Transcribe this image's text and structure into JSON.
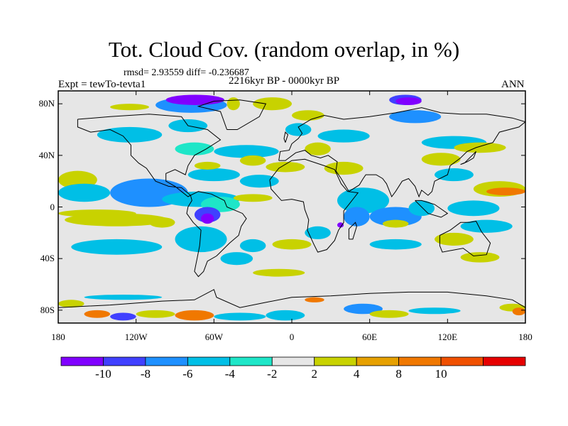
{
  "title": "Tot. Cloud Cov. (random overlap, in %)",
  "stats": "rmsd= 2.93559 diff= -0.236687",
  "experiment": "Expt = tewTo-tevta1",
  "period": "2216kyr BP - 0000kyr BP",
  "season": "ANN",
  "map": {
    "projection": "cylindrical-equidistant",
    "lon_range": [
      -180,
      180
    ],
    "lat_range": [
      -90,
      90
    ],
    "lat_ticks": [
      {
        "value": 80,
        "label": "80N"
      },
      {
        "value": 40,
        "label": "40N"
      },
      {
        "value": 0,
        "label": "0"
      },
      {
        "value": -40,
        "label": "40S"
      },
      {
        "value": -80,
        "label": "80S"
      }
    ],
    "lon_ticks": [
      {
        "value": -180,
        "label": "180"
      },
      {
        "value": -120,
        "label": "120W"
      },
      {
        "value": -60,
        "label": "60W"
      },
      {
        "value": 0,
        "label": "0"
      },
      {
        "value": 60,
        "label": "60E"
      },
      {
        "value": 120,
        "label": "120E"
      },
      {
        "value": 180,
        "label": "180"
      }
    ],
    "background_color": "#e6e6e6",
    "regions": [
      {
        "level": 6,
        "lon": -180,
        "lat": 28,
        "w": 30,
        "h": 14
      },
      {
        "level": 3,
        "lon": -180,
        "lat": 18,
        "w": 40,
        "h": 14
      },
      {
        "level": 6,
        "lon": -180,
        "lat": -2,
        "w": 60,
        "h": 6
      },
      {
        "level": 2,
        "lon": -140,
        "lat": 22,
        "w": 60,
        "h": 22
      },
      {
        "level": 6,
        "lon": -175,
        "lat": -5,
        "w": 80,
        "h": 10
      },
      {
        "level": 3,
        "lon": -170,
        "lat": -25,
        "w": 70,
        "h": 12
      },
      {
        "level": 6,
        "lon": -110,
        "lat": -8,
        "w": 20,
        "h": 8
      },
      {
        "level": 3,
        "lon": -150,
        "lat": 62,
        "w": 50,
        "h": 12
      },
      {
        "level": 6,
        "lon": -140,
        "lat": 80,
        "w": 30,
        "h": 5
      },
      {
        "level": 2,
        "lon": -105,
        "lat": 85,
        "w": 55,
        "h": 12
      },
      {
        "level": 0,
        "lon": -97,
        "lat": 87,
        "w": 45,
        "h": 8
      },
      {
        "level": 6,
        "lon": -50,
        "lat": 85,
        "w": 10,
        "h": 10
      },
      {
        "level": 3,
        "lon": -95,
        "lat": 68,
        "w": 30,
        "h": 10
      },
      {
        "level": 4,
        "lon": -90,
        "lat": 50,
        "w": 30,
        "h": 10
      },
      {
        "level": 3,
        "lon": -80,
        "lat": 30,
        "w": 40,
        "h": 10
      },
      {
        "level": 6,
        "lon": -75,
        "lat": 35,
        "w": 20,
        "h": 6
      },
      {
        "level": 3,
        "lon": -100,
        "lat": 12,
        "w": 60,
        "h": 12
      },
      {
        "level": 4,
        "lon": -70,
        "lat": 8,
        "w": 30,
        "h": 12
      },
      {
        "level": 1,
        "lon": -75,
        "lat": 0,
        "w": 20,
        "h": 12
      },
      {
        "level": 0,
        "lon": -70,
        "lat": -5,
        "w": 10,
        "h": 8
      },
      {
        "level": 3,
        "lon": -90,
        "lat": -15,
        "w": 40,
        "h": 20
      },
      {
        "level": 3,
        "lon": -55,
        "lat": -35,
        "w": 25,
        "h": 10
      },
      {
        "level": 3,
        "lon": -40,
        "lat": -25,
        "w": 20,
        "h": 10
      },
      {
        "level": 6,
        "lon": -30,
        "lat": 85,
        "w": 30,
        "h": 10
      },
      {
        "level": 3,
        "lon": -60,
        "lat": 48,
        "w": 50,
        "h": 10
      },
      {
        "level": 3,
        "lon": -40,
        "lat": 25,
        "w": 30,
        "h": 10
      },
      {
        "level": 6,
        "lon": -40,
        "lat": 40,
        "w": 20,
        "h": 8
      },
      {
        "level": 6,
        "lon": -20,
        "lat": 35,
        "w": 30,
        "h": 8
      },
      {
        "level": 6,
        "lon": -45,
        "lat": 10,
        "w": 30,
        "h": 6
      },
      {
        "level": 6,
        "lon": -15,
        "lat": -25,
        "w": 30,
        "h": 8
      },
      {
        "level": 6,
        "lon": -30,
        "lat": -48,
        "w": 40,
        "h": 6
      },
      {
        "level": 3,
        "lon": -5,
        "lat": 65,
        "w": 20,
        "h": 10
      },
      {
        "level": 6,
        "lon": 0,
        "lat": 75,
        "w": 25,
        "h": 8
      },
      {
        "level": 3,
        "lon": 20,
        "lat": 60,
        "w": 40,
        "h": 10
      },
      {
        "level": 6,
        "lon": 10,
        "lat": 50,
        "w": 20,
        "h": 10
      },
      {
        "level": 6,
        "lon": 25,
        "lat": 35,
        "w": 30,
        "h": 10
      },
      {
        "level": 3,
        "lon": 35,
        "lat": 15,
        "w": 40,
        "h": 20
      },
      {
        "level": 2,
        "lon": 40,
        "lat": 0,
        "w": 20,
        "h": 15
      },
      {
        "level": 0,
        "lon": 35,
        "lat": -12,
        "w": 5,
        "h": 4
      },
      {
        "level": 2,
        "lon": 60,
        "lat": 0,
        "w": 40,
        "h": 15
      },
      {
        "level": 3,
        "lon": 90,
        "lat": 5,
        "w": 20,
        "h": 12
      },
      {
        "level": 3,
        "lon": 10,
        "lat": -15,
        "w": 20,
        "h": 10
      },
      {
        "level": 1,
        "lon": 75,
        "lat": 87,
        "w": 25,
        "h": 8
      },
      {
        "level": 0,
        "lon": 80,
        "lat": 85,
        "w": 20,
        "h": 6
      },
      {
        "level": 2,
        "lon": 75,
        "lat": 75,
        "w": 40,
        "h": 10
      },
      {
        "level": 3,
        "lon": 100,
        "lat": 55,
        "w": 50,
        "h": 10
      },
      {
        "level": 6,
        "lon": 100,
        "lat": 42,
        "w": 30,
        "h": 10
      },
      {
        "level": 6,
        "lon": 125,
        "lat": 50,
        "w": 40,
        "h": 8
      },
      {
        "level": 3,
        "lon": 110,
        "lat": 30,
        "w": 30,
        "h": 10
      },
      {
        "level": 6,
        "lon": 140,
        "lat": 20,
        "w": 40,
        "h": 12
      },
      {
        "level": 8,
        "lon": 150,
        "lat": 15,
        "w": 30,
        "h": 6
      },
      {
        "level": 3,
        "lon": 120,
        "lat": 5,
        "w": 40,
        "h": 12
      },
      {
        "level": 6,
        "lon": 110,
        "lat": -20,
        "w": 30,
        "h": 10
      },
      {
        "level": 3,
        "lon": 130,
        "lat": -10,
        "w": 40,
        "h": 10
      },
      {
        "level": 6,
        "lon": 130,
        "lat": -35,
        "w": 30,
        "h": 8
      },
      {
        "level": 3,
        "lon": 60,
        "lat": -25,
        "w": 40,
        "h": 8
      },
      {
        "level": 6,
        "lon": 70,
        "lat": -10,
        "w": 20,
        "h": 6
      },
      {
        "level": 6,
        "lon": -180,
        "lat": -72,
        "w": 20,
        "h": 6
      },
      {
        "level": 3,
        "lon": -160,
        "lat": -68,
        "w": 60,
        "h": 4
      },
      {
        "level": 8,
        "lon": -160,
        "lat": -80,
        "w": 20,
        "h": 6
      },
      {
        "level": 1,
        "lon": -140,
        "lat": -82,
        "w": 20,
        "h": 6
      },
      {
        "level": 6,
        "lon": -120,
        "lat": -80,
        "w": 30,
        "h": 6
      },
      {
        "level": 8,
        "lon": -90,
        "lat": -80,
        "w": 30,
        "h": 8
      },
      {
        "level": 3,
        "lon": -60,
        "lat": -82,
        "w": 40,
        "h": 6
      },
      {
        "level": 3,
        "lon": -20,
        "lat": -80,
        "w": 30,
        "h": 8
      },
      {
        "level": 8,
        "lon": 10,
        "lat": -70,
        "w": 15,
        "h": 4
      },
      {
        "level": 2,
        "lon": 40,
        "lat": -75,
        "w": 30,
        "h": 8
      },
      {
        "level": 6,
        "lon": 60,
        "lat": -80,
        "w": 30,
        "h": 6
      },
      {
        "level": 3,
        "lon": 90,
        "lat": -78,
        "w": 40,
        "h": 5
      },
      {
        "level": 6,
        "lon": 160,
        "lat": -75,
        "w": 20,
        "h": 6
      },
      {
        "level": 8,
        "lon": 170,
        "lat": -78,
        "w": 10,
        "h": 6
      }
    ]
  },
  "colorbar": {
    "colors": [
      "#8000ff",
      "#4040ff",
      "#1e90ff",
      "#00bfe6",
      "#1ee6c8",
      "#e6e6e6",
      "#c8d200",
      "#e6a000",
      "#f07800",
      "#f05000",
      "#e60000"
    ],
    "labels": [
      "-10",
      "-8",
      "-6",
      "-4",
      "-2",
      "2",
      "4",
      "8",
      "10"
    ]
  }
}
